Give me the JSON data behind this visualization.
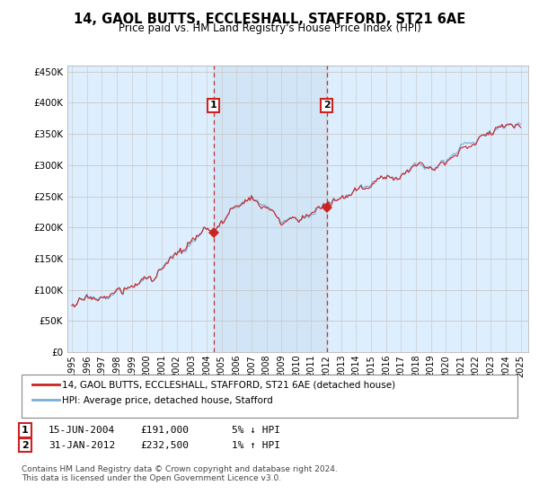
{
  "title": "14, GAOL BUTTS, ECCLESHALL, STAFFORD, ST21 6AE",
  "subtitle": "Price paid vs. HM Land Registry's House Price Index (HPI)",
  "legend_line1": "14, GAOL BUTTS, ECCLESHALL, STAFFORD, ST21 6AE (detached house)",
  "legend_line2": "HPI: Average price, detached house, Stafford",
  "annotation1_label": "1",
  "annotation1_date": "15-JUN-2004",
  "annotation1_price": "£191,000",
  "annotation1_hpi": "5% ↓ HPI",
  "annotation2_label": "2",
  "annotation2_date": "31-JAN-2012",
  "annotation2_price": "£232,500",
  "annotation2_hpi": "1% ↑ HPI",
  "footer": "Contains HM Land Registry data © Crown copyright and database right 2024.\nThis data is licensed under the Open Government Licence v3.0.",
  "hpi_color": "#7aaed4",
  "price_color": "#cc2222",
  "marker_color": "#cc2222",
  "dashed_color": "#cc3333",
  "shade_color": "#d0e4f5",
  "background_color": "#ffffff",
  "chart_bg": "#ddeeff",
  "grid_color": "#cccccc",
  "ylim": [
    0,
    460000
  ],
  "yticks": [
    0,
    50000,
    100000,
    150000,
    200000,
    250000,
    300000,
    350000,
    400000,
    450000
  ],
  "year_start": 1995,
  "year_end": 2025
}
